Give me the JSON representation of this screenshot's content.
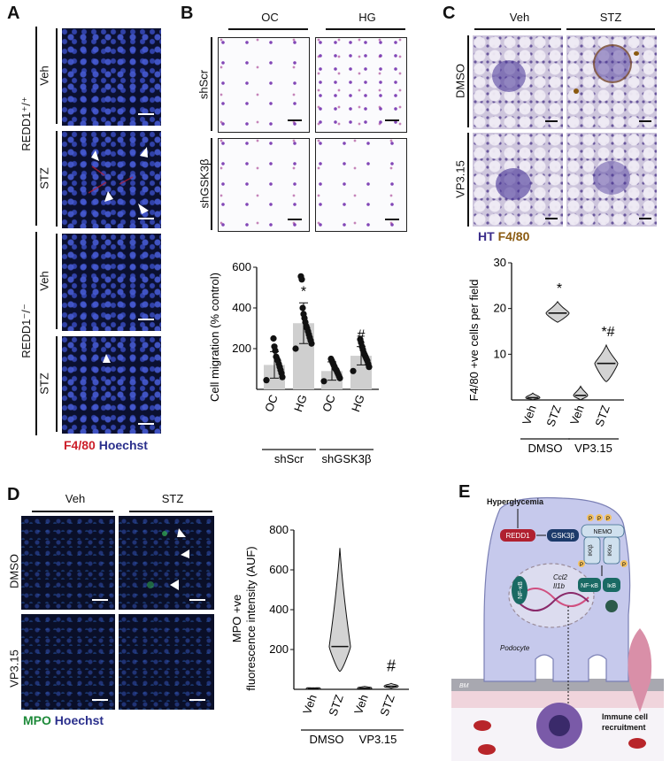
{
  "panels": {
    "A": {
      "label": "A",
      "group_top": "REDD1⁺/⁺",
      "group_bottom": "REDD1⁻/⁻",
      "row_labels": [
        "Veh",
        "STZ",
        "Veh",
        "STZ"
      ],
      "legend_red": "F4/80",
      "legend_blue": "Hoechst",
      "colors": {
        "red": "#cc1f2a",
        "blue": "#2a2f8c"
      }
    },
    "B": {
      "label": "B",
      "col_labels": [
        "OC",
        "HG"
      ],
      "row_labels": [
        "shScr",
        "shGSK3β"
      ]
    },
    "C": {
      "label": "C",
      "col_labels": [
        "Veh",
        "STZ"
      ],
      "row_labels": [
        "DMSO",
        "VP3.15"
      ],
      "legend_ht": "HT",
      "legend_f480": "F4/80",
      "colors": {
        "ht": "#3a2c8a",
        "f480": "#8a5a10"
      }
    },
    "D": {
      "label": "D",
      "col_labels": [
        "Veh",
        "STZ"
      ],
      "row_labels": [
        "DMSO",
        "VP3.15"
      ],
      "legend_mpo": "MPO",
      "legend_hoechst": "Hoechst",
      "colors": {
        "mpo": "#1e8a3a",
        "hoechst": "#2a2f8c"
      }
    },
    "E": {
      "label": "E",
      "texts": {
        "hyperglycemia": "Hyperglycemia",
        "redd1": "REDD1",
        "gsk3b": "GSK3β",
        "nemo": "NEMO",
        "ikkb": "IKKβ",
        "ikka": "IKKα",
        "p": "P",
        "nfkb": "NF-κB",
        "ikb": "IκB",
        "nfkb_nuc": "NF-κB",
        "ccl2": "Ccl2",
        "il1b": "Il1b",
        "podocyte": "Podocyte",
        "bm": "BM",
        "immune": "Immune cell",
        "recruitment": "recruitment"
      }
    }
  },
  "chart_data": [
    {
      "panel": "B",
      "type": "bar",
      "ylabel": "Cell migration  (% control)",
      "ylim": [
        0,
        600
      ],
      "yticks": [
        200,
        400,
        600
      ],
      "categories": [
        "OC",
        "HG",
        "OC",
        "HG"
      ],
      "groups": [
        "shScr",
        "shGSK3β"
      ],
      "values": [
        120,
        325,
        90,
        165
      ],
      "errors": [
        65,
        100,
        45,
        45
      ],
      "annotations": [
        "",
        "*",
        "",
        "#"
      ],
      "points": [
        [
          45,
          60,
          80,
          95,
          110,
          125,
          140,
          150,
          160,
          190,
          210,
          250
        ],
        [
          200,
          225,
          240,
          255,
          270,
          285,
          300,
          310,
          330,
          350,
          370,
          400,
          540,
          555
        ],
        [
          40,
          55,
          65,
          75,
          85,
          95,
          100,
          110,
          120,
          130,
          140,
          150
        ],
        [
          90,
          110,
          125,
          140,
          150,
          160,
          170,
          180,
          195,
          210,
          230,
          245
        ]
      ]
    },
    {
      "panel": "C",
      "type": "violin",
      "ylabel": "F4/80 +ve cells per field",
      "ylim": [
        0,
        30
      ],
      "yticks": [
        10,
        20,
        30
      ],
      "categories": [
        "Veh",
        "STZ",
        "Veh",
        "STZ"
      ],
      "groups": [
        "DMSO",
        "VP3.15"
      ],
      "medians": [
        0.5,
        19,
        1,
        8
      ],
      "ranges": [
        [
          0,
          1.5
        ],
        [
          17,
          21.5
        ],
        [
          0,
          3
        ],
        [
          4,
          12
        ]
      ],
      "annotations": [
        "",
        "*",
        "",
        "*#"
      ]
    },
    {
      "panel": "D",
      "type": "violin",
      "ylabel_line1": "MPO +ve",
      "ylabel_line2": "fluorescence intensity (AUF)",
      "ylim": [
        0,
        800
      ],
      "yticks": [
        200,
        400,
        600,
        800
      ],
      "categories": [
        "Veh",
        "STZ",
        "Veh",
        "STZ"
      ],
      "groups": [
        "DMSO",
        "VP3.15"
      ],
      "medians": [
        3,
        215,
        5,
        15
      ],
      "ranges": [
        [
          0,
          8
        ],
        [
          90,
          710
        ],
        [
          0,
          15
        ],
        [
          5,
          30
        ]
      ],
      "annotations": [
        "",
        "*",
        "",
        "#"
      ]
    }
  ]
}
